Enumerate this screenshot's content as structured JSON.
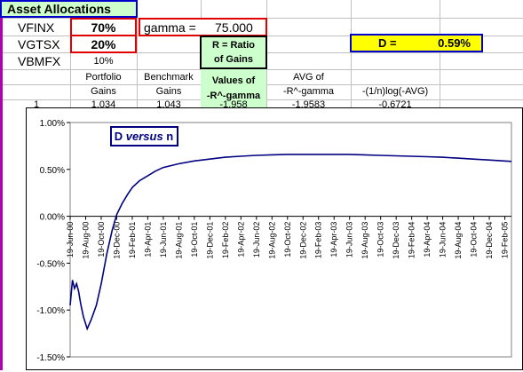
{
  "sheet": {
    "title": "Asset Allocations",
    "rows": [
      {
        "label": "VFINX",
        "value": "70%"
      },
      {
        "label": "VGTSX",
        "value": "20%"
      },
      {
        "label": "VBMFX",
        "value": "10%"
      }
    ],
    "gamma_label": "gamma =",
    "gamma_value": "75.000",
    "ratio_line1": "R = Ratio",
    "ratio_line2": "of Gains",
    "d_label": "D =",
    "d_value": "0.59%",
    "headers": {
      "portfolio_1": "Portfolio",
      "portfolio_2": "Gains",
      "benchmark_1": "Benchmark",
      "benchmark_2": "Gains",
      "values_1": "Values of",
      "values_2": "-R^-gamma",
      "avg_1": "AVG of",
      "avg_2": "-R^-gamma",
      "log_2": "-(1/n)log(-AVG)"
    },
    "first_row": {
      "n": "1",
      "portfolio": "1.034",
      "benchmark": "1.043",
      "values": "-1.958",
      "avg": "-1.9583",
      "log": "-0.6721"
    },
    "colors": {
      "red_border": "#e00000",
      "blue_border": "#0000cc",
      "yellow": "#ffff00",
      "green": "#ccffcc",
      "light_green": "#ccffcc",
      "series": "#000080"
    }
  },
  "chart_data": {
    "type": "line",
    "title": "D versus n",
    "title_plain": "D",
    "title_italic": "versus",
    "title_end": "n",
    "y_ticks": [
      "1.00%",
      "0.50%",
      "0.00%",
      "-0.50%",
      "-1.00%",
      "-1.50%"
    ],
    "ylim": [
      -1.5,
      1.0
    ],
    "x_ticks": [
      "19-Jun-00",
      "19-Aug-00",
      "19-Oct-00",
      "19-Dec-00",
      "19-Feb-01",
      "19-Apr-01",
      "19-Jun-01",
      "19-Aug-01",
      "19-Oct-01",
      "19-Dec-01",
      "19-Feb-02",
      "19-Apr-02",
      "19-Jun-02",
      "19-Aug-02",
      "19-Oct-02",
      "19-Dec-02",
      "19-Feb-03",
      "19-Apr-03",
      "19-Jun-03",
      "19-Aug-03",
      "19-Oct-03",
      "19-Dec-03",
      "19-Feb-04",
      "19-Apr-04",
      "19-Jun-04",
      "19-Aug-04",
      "19-Oct-04",
      "19-Dec-04",
      "19-Feb-05"
    ],
    "series": [
      {
        "x": [
          "2000-06-19",
          "2000-06-28",
          "2000-07-06",
          "2000-07-14",
          "2000-07-22",
          "2000-07-30",
          "2000-08-10",
          "2000-08-25",
          "2000-09-10",
          "2000-09-30",
          "2000-10-19",
          "2000-11-10",
          "2000-12-01",
          "2000-12-19",
          "2001-01-10",
          "2001-02-01",
          "2001-02-19",
          "2001-03-19",
          "2001-04-19",
          "2001-05-19",
          "2001-06-19",
          "2001-08-19",
          "2001-10-19",
          "2001-12-19",
          "2002-02-19",
          "2002-04-19",
          "2002-06-19",
          "2002-08-19",
          "2002-10-19",
          "2002-12-19",
          "2003-02-19",
          "2003-04-19",
          "2003-06-19",
          "2003-08-19",
          "2003-10-19",
          "2003-12-19",
          "2004-02-19",
          "2004-04-19",
          "2004-06-19",
          "2004-08-19",
          "2004-10-19",
          "2004-12-19",
          "2005-02-19",
          "2005-03-19"
        ],
        "y": [
          -0.95,
          -0.68,
          -0.77,
          -0.72,
          -0.8,
          -0.93,
          -1.07,
          -1.2,
          -1.1,
          -0.95,
          -0.72,
          -0.4,
          -0.15,
          0.02,
          0.14,
          0.24,
          0.31,
          0.38,
          0.43,
          0.48,
          0.52,
          0.56,
          0.59,
          0.61,
          0.63,
          0.64,
          0.65,
          0.655,
          0.66,
          0.66,
          0.66,
          0.66,
          0.66,
          0.655,
          0.65,
          0.645,
          0.64,
          0.635,
          0.63,
          0.62,
          0.61,
          0.6,
          0.59,
          0.585
        ]
      }
    ]
  }
}
